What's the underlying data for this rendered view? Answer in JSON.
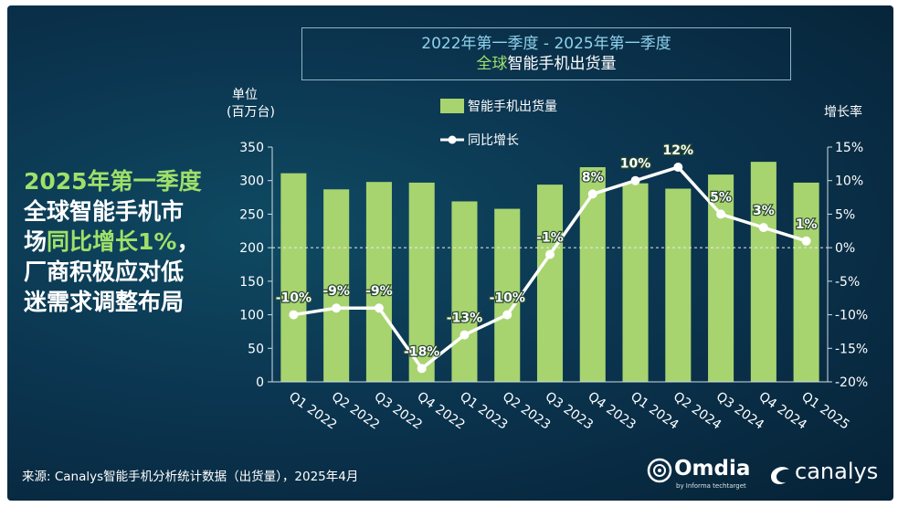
{
  "header": {
    "title_line1": "2022年第一季度 - 2025年第一季度",
    "title_line2_accent": "全球",
    "title_line2_rest": "智能手机出货量"
  },
  "side_text": {
    "line1": "2025年第一季度",
    "line2": "全球智能手机市",
    "line3_pre": "场",
    "line3_green": "同比增长1%",
    "line3_post": "，",
    "line4": "厂商积极应对低",
    "line5": "迷需求调整布局"
  },
  "footer": {
    "source": "来源: Canalys智能手机分析统计数据（出货量），2025年4月",
    "omdia_name": "Omdia",
    "omdia_sub": "by Informa techtarget",
    "canalys_name": "canalys"
  },
  "colors": {
    "bar": "#a8d46f",
    "line": "#ffffff",
    "background": "#0b3550",
    "accent_green": "#9fe06a",
    "title_blue": "#8fd2ec"
  },
  "chart_data": {
    "type": "bar",
    "categories": [
      "Q1 2022",
      "Q2 2022",
      "Q3 2022",
      "Q4 2022",
      "Q1 2023",
      "Q2 2023",
      "Q3 2023",
      "Q4 2023",
      "Q1 2024",
      "Q2 2024",
      "Q3 2024",
      "Q4 2024",
      "Q1 2025"
    ],
    "series": [
      {
        "name": "智能手机出货量",
        "type": "bar",
        "axis": "left",
        "values": [
          311,
          287,
          298,
          297,
          269,
          258,
          294,
          320,
          296,
          288,
          309,
          328,
          297
        ]
      },
      {
        "name": "同比增长",
        "type": "line",
        "axis": "right",
        "values": [
          -10,
          -9,
          -9,
          -18,
          -13,
          -10,
          -1,
          8,
          10,
          12,
          5,
          3,
          1
        ],
        "labels": [
          "-10%",
          "-9%",
          "-9%",
          "-18%",
          "-13%",
          "-10%",
          "-1%",
          "8%",
          "10%",
          "12%",
          "5%",
          "3%",
          "1%"
        ]
      }
    ],
    "y_left": {
      "label_line1": "单位",
      "label_line2": "(百万台)",
      "ylim": [
        0,
        350
      ],
      "ticks": [
        0,
        50,
        100,
        150,
        200,
        250,
        300,
        350
      ]
    },
    "y_right": {
      "label": "增长率",
      "ylim": [
        -20,
        15
      ],
      "ticks": [
        -20,
        -15,
        -10,
        -5,
        0,
        5,
        10,
        15
      ],
      "tick_labels": [
        "-20%",
        "-15%",
        "-10%",
        "-5%",
        "0%",
        "5%",
        "10%",
        "15%"
      ]
    },
    "zero_reference_line": "dashed",
    "legend_position": "top-center",
    "grid": false
  }
}
